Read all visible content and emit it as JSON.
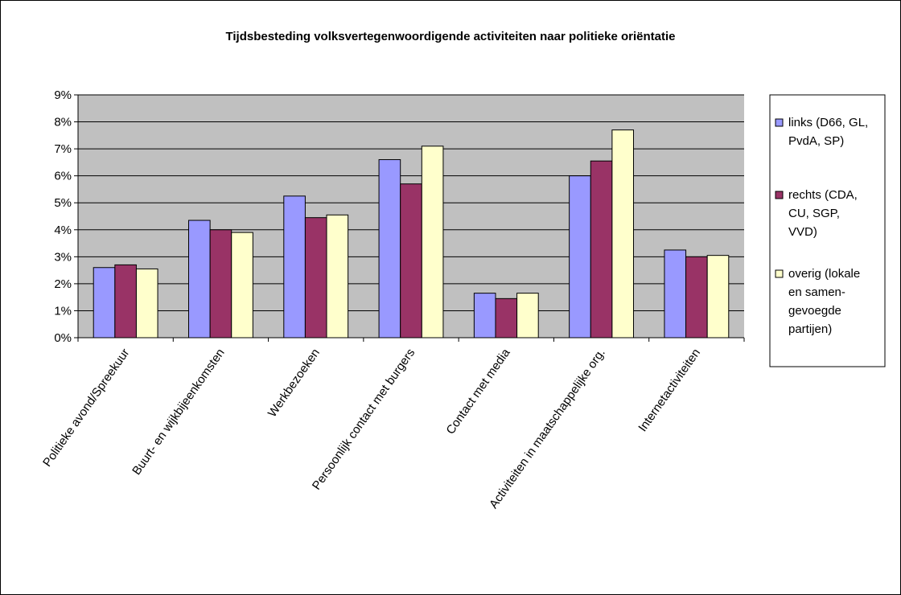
{
  "chart_data": {
    "type": "bar",
    "title": "Tijdsbesteding volksvertegenwoordigende activiteiten naar politieke oriëntatie",
    "xlabel": "",
    "ylabel": "",
    "ylim": [
      0,
      9
    ],
    "y_tick_labels": [
      "0%",
      "1%",
      "2%",
      "3%",
      "4%",
      "5%",
      "6%",
      "7%",
      "8%",
      "9%"
    ],
    "grid": true,
    "legend_position": "right",
    "categories": [
      "Politieke avond/Spreekuur",
      "Buurt- en wijkbijeenkomsten",
      "Werkbezoeken",
      "Persoonlijk contact met burgers",
      "Contact met media",
      "Activiteiten in maatschappelijke org.",
      "Internetactiviteiten"
    ],
    "series": [
      {
        "name": "links (D66, GL, PvdA, SP)",
        "legend_lines": [
          "links (D66, GL,",
          "PvdA, SP)"
        ],
        "color": "#9999ff",
        "values": [
          2.6,
          4.35,
          5.25,
          6.6,
          1.65,
          6.0,
          3.25
        ]
      },
      {
        "name": "rechts (CDA, CU, SGP, VVD)",
        "legend_lines": [
          "rechts (CDA,",
          "CU, SGP,",
          "VVD)"
        ],
        "color": "#993366",
        "values": [
          2.7,
          4.0,
          4.45,
          5.7,
          1.45,
          6.55,
          3.0
        ]
      },
      {
        "name": "overig (lokale en samen-gevoegde partijen)",
        "legend_lines": [
          "overig (lokale",
          "en samen-",
          "gevoegde",
          "partijen)"
        ],
        "color": "#ffffcc",
        "values": [
          2.55,
          3.9,
          4.55,
          7.1,
          1.65,
          7.7,
          3.05
        ]
      }
    ],
    "colors": {
      "plot_background": "#c0c0c0",
      "gridline": "#000000"
    }
  }
}
